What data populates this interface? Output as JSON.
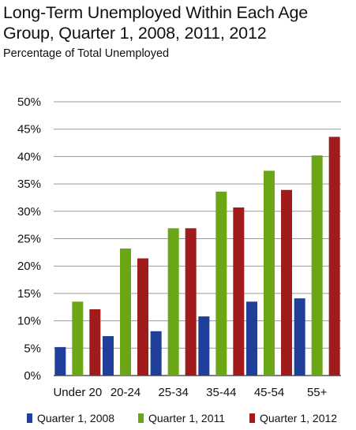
{
  "chart_data": {
    "type": "bar",
    "title": "Long-Term Unemployed Within Each Age Group, Quarter 1, 2008, 2011, 2012",
    "subtitle": "Percentage of Total Unemployed",
    "xlabel": "",
    "ylabel": "",
    "categories": [
      "Under 20",
      "20-24",
      "25-34",
      "35-44",
      "45-54",
      "55+"
    ],
    "y_ticks": [
      "0%",
      "5%",
      "10%",
      "15%",
      "20%",
      "25%",
      "30%",
      "35%",
      "40%",
      "45%",
      "50%"
    ],
    "ylim": [
      0,
      50
    ],
    "grid": true,
    "legend_position": "bottom",
    "series": [
      {
        "name": "Quarter 1, 2008",
        "color": "#1f3f9a",
        "values": [
          5.2,
          7.2,
          8.1,
          10.8,
          13.5,
          14.1
        ]
      },
      {
        "name": "Quarter 1, 2011",
        "color": "#6aa615",
        "values": [
          13.5,
          23.2,
          26.9,
          33.6,
          37.4,
          40.2
        ]
      },
      {
        "name": "Quarter 1, 2012",
        "color": "#a01b1b",
        "values": [
          12.1,
          21.4,
          26.9,
          30.7,
          33.9,
          43.6
        ]
      }
    ]
  }
}
